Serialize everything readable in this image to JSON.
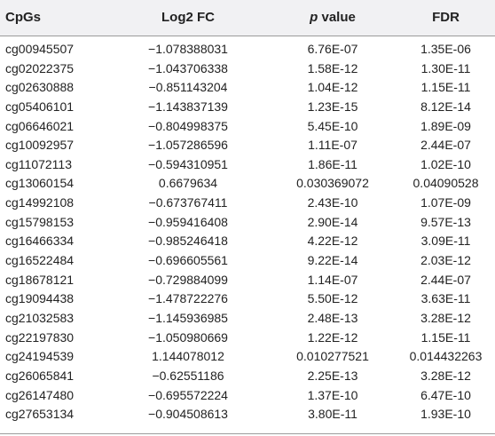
{
  "header": {
    "col0": "CpGs",
    "col1": "Log2 FC",
    "col2_italic": "p",
    "col2_rest": " value",
    "col3": "FDR"
  },
  "rows": [
    [
      "cg00945507",
      "−1.078388031",
      "6.76E-07",
      "1.35E-06"
    ],
    [
      "cg02022375",
      "−1.043706338",
      "1.58E-12",
      "1.30E-11"
    ],
    [
      "cg02630888",
      "−0.851143204",
      "1.04E-12",
      "1.15E-11"
    ],
    [
      "cg05406101",
      "−1.143837139",
      "1.23E-15",
      "8.12E-14"
    ],
    [
      "cg06646021",
      "−0.804998375",
      "5.45E-10",
      "1.89E-09"
    ],
    [
      "cg10092957",
      "−1.057286596",
      "1.11E-07",
      "2.44E-07"
    ],
    [
      "cg11072113",
      "−0.594310951",
      "1.86E-11",
      "1.02E-10"
    ],
    [
      "cg13060154",
      "0.6679634",
      "0.030369072",
      "0.04090528"
    ],
    [
      "cg14992108",
      "−0.673767411",
      "2.43E-10",
      "1.07E-09"
    ],
    [
      "cg15798153",
      "−0.959416408",
      "2.90E-14",
      "9.57E-13"
    ],
    [
      "cg16466334",
      "−0.985246418",
      "4.22E-12",
      "3.09E-11"
    ],
    [
      "cg16522484",
      "−0.696605561",
      "9.22E-14",
      "2.03E-12"
    ],
    [
      "cg18678121",
      "−0.729884099",
      "1.14E-07",
      "2.44E-07"
    ],
    [
      "cg19094438",
      "−1.478722276",
      "5.50E-12",
      "3.63E-11"
    ],
    [
      "cg21032583",
      "−1.145936985",
      "2.48E-13",
      "3.28E-12"
    ],
    [
      "cg22197830",
      "−1.050980669",
      "1.22E-12",
      "1.15E-11"
    ],
    [
      "cg24194539",
      "1.144078012",
      "0.010277521",
      "0.014432263"
    ],
    [
      "cg26065841",
      "−0.62551186",
      "2.25E-13",
      "3.28E-12"
    ],
    [
      "cg26147480",
      "−0.695572224",
      "1.37E-10",
      "6.47E-10"
    ],
    [
      "cg27653134",
      "−0.904508613",
      "3.80E-11",
      "1.93E-10"
    ]
  ]
}
